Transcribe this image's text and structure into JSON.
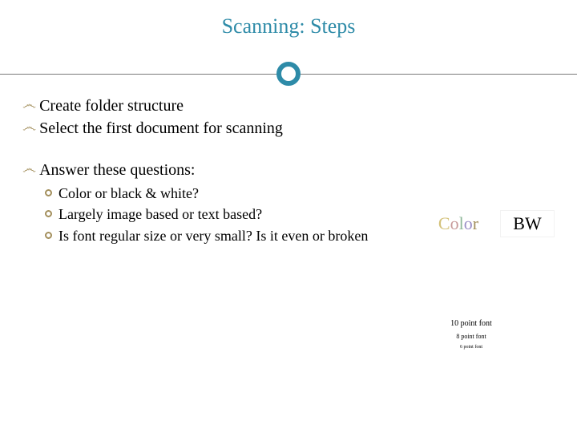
{
  "title": "Scanning: Steps",
  "colors": {
    "accent": "#2e8ba8",
    "bullet_accent": "#a38f5c",
    "text": "#000000",
    "background": "#ffffff"
  },
  "fonts": {
    "title_size": 26,
    "main_size": 20,
    "sub_size": 18
  },
  "main_points": [
    "Create folder structure",
    "Select the first document for scanning"
  ],
  "question_header": "Answer these questions:",
  "questions": [
    "Color or black & white?",
    "Largely image based or text based?",
    "Is font regular size or very small? Is it even or broken"
  ],
  "color_label": {
    "c1": "C",
    "c2": "o",
    "c3": "l",
    "c4": "o",
    "c5": "r"
  },
  "bw_label": "BW",
  "font_samples": {
    "f10": "10 point font",
    "f8": "8 point font",
    "f6": "6 point font"
  }
}
